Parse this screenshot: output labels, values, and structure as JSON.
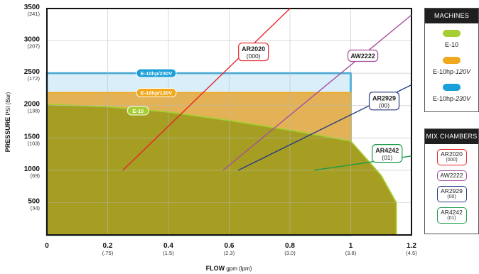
{
  "chart_data": {
    "type": "area",
    "xlabel": "FLOW",
    "xlabel_unit": "gpm (lpm)",
    "ylabel": "PRESSURE",
    "ylabel_unit": "PSI (Bar)",
    "xlim": [
      0,
      1.2
    ],
    "ylim": [
      0,
      3500
    ],
    "grid": true,
    "x_ticks": [
      {
        "value": 0,
        "label": "0",
        "sub": ""
      },
      {
        "value": 0.2,
        "label": "0.2",
        "sub": "(.75)"
      },
      {
        "value": 0.4,
        "label": "0.4",
        "sub": "(1.5)"
      },
      {
        "value": 0.6,
        "label": "0.6",
        "sub": "(2.3)"
      },
      {
        "value": 0.8,
        "label": "0.8",
        "sub": "(3.0)"
      },
      {
        "value": 1.0,
        "label": "1",
        "sub": "(3.8)"
      },
      {
        "value": 1.2,
        "label": "1.2",
        "sub": "(4.5)"
      }
    ],
    "y_ticks": [
      {
        "value": 500,
        "label": "500",
        "sub": "(34)"
      },
      {
        "value": 1000,
        "label": "1000",
        "sub": "(69)"
      },
      {
        "value": 1500,
        "label": "1500",
        "sub": "(103)"
      },
      {
        "value": 2000,
        "label": "2000",
        "sub": "(138)"
      },
      {
        "value": 2500,
        "label": "2500",
        "sub": "(172)"
      },
      {
        "value": 3000,
        "label": "3000",
        "sub": "(207)"
      },
      {
        "value": 3500,
        "label": "3500",
        "sub": "(241)"
      }
    ],
    "machines": [
      {
        "name": "E-10hp/230V",
        "color": "#1a9fd9",
        "fill": "#d9eef9",
        "points": [
          [
            0,
            2500
          ],
          [
            1.0,
            2500
          ],
          [
            1.0,
            0
          ],
          [
            0,
            0
          ]
        ]
      },
      {
        "name": "E-10hp/120V",
        "color": "#f0a81e",
        "fill": "#e3b256",
        "points": [
          [
            0,
            2200
          ],
          [
            1.0,
            2200
          ],
          [
            1.0,
            0
          ],
          [
            0,
            0
          ]
        ]
      },
      {
        "name": "E-10",
        "color": "#a6cd32",
        "fill": "#a59e22",
        "points": [
          [
            0,
            2020
          ],
          [
            0.2,
            1980
          ],
          [
            0.4,
            1900
          ],
          [
            0.6,
            1770
          ],
          [
            0.8,
            1620
          ],
          [
            0.92,
            1520
          ],
          [
            1.0,
            1450
          ],
          [
            1.04,
            1240
          ],
          [
            1.1,
            920
          ],
          [
            1.15,
            500
          ],
          [
            1.15,
            0
          ],
          [
            0,
            0
          ]
        ]
      }
    ],
    "machine_label_pos": [
      {
        "text": "E-10hp/230V",
        "color": "#1a9fd9",
        "x": 0.36,
        "y": 2500
      },
      {
        "text": "E-10hp/120V",
        "color": "#f0a81e",
        "x": 0.36,
        "y": 2200
      },
      {
        "text": "E-10",
        "color": "#a6cd32",
        "x": 0.3,
        "y": 1920
      }
    ],
    "mix_lines": [
      {
        "name": "AR2020",
        "code": "(000)",
        "color": "#e5262b",
        "points": [
          [
            0.25,
            1000
          ],
          [
            0.8,
            3500
          ]
        ],
        "label_at": [
          0.68,
          2830
        ]
      },
      {
        "name": "AW2222",
        "code": "",
        "color": "#a24fa0",
        "points": [
          [
            0.58,
            1000
          ],
          [
            1.2,
            3400
          ]
        ],
        "label_at": [
          1.04,
          2770
        ]
      },
      {
        "name": "AR2929",
        "code": "(00)",
        "color": "#2a3b82",
        "points": [
          [
            0.63,
            1000
          ],
          [
            1.2,
            2320
          ]
        ],
        "label_at": [
          1.11,
          2070
        ]
      },
      {
        "name": "AR4242",
        "code": "(01)",
        "color": "#1a9a4a",
        "points": [
          [
            0.88,
            1000
          ],
          [
            1.2,
            1220
          ]
        ],
        "label_at": [
          1.12,
          1260
        ]
      }
    ]
  },
  "legend": {
    "machines_title": "MACHINES",
    "machines": [
      {
        "name": "E-10",
        "suffix": "",
        "color": "#a6cd32"
      },
      {
        "name": "E-10hp-",
        "suffix": "120V",
        "color": "#f0a81e"
      },
      {
        "name": "E-10hp-",
        "suffix": "230V",
        "color": "#1a9fd9"
      }
    ],
    "mix_title": "MIX CHAMBERS",
    "mix": [
      {
        "name": "AR2020",
        "code": "(000)",
        "color": "#e5262b"
      },
      {
        "name": "AW2222",
        "code": "",
        "color": "#a24fa0"
      },
      {
        "name": "AR2929",
        "code": "(00)",
        "color": "#2a3b82"
      },
      {
        "name": "AR4242",
        "code": "(01)",
        "color": "#1a9a4a"
      }
    ]
  }
}
